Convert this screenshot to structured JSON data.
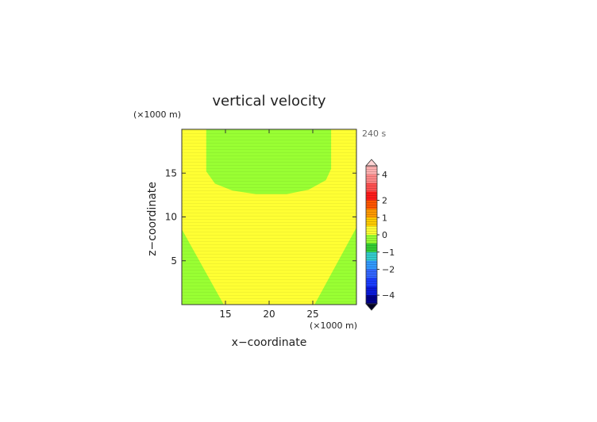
{
  "chart_data": {
    "type": "heatmap",
    "title": "vertical velocity",
    "xlabel": "x−coordinate",
    "ylabel": "z−coordinate",
    "x_unit": "(×1000 m)",
    "y_unit": "(×1000 m)",
    "time_label": "240 s",
    "xlim": [
      10,
      30
    ],
    "ylim": [
      0,
      20
    ],
    "x_ticks": [
      15,
      20,
      25
    ],
    "y_ticks": [
      5,
      10,
      15
    ],
    "x_tick_labels": [
      "15",
      "20",
      "25"
    ],
    "y_tick_labels": [
      "5",
      "10",
      "15"
    ],
    "field": {
      "background_level": "0 to 0.5",
      "background_color": "#ffff33",
      "regions": [
        {
          "name": "upper-green-region",
          "level": "-0.5 to 0",
          "color": "#99ff33",
          "polygon": [
            [
              12.8,
              20
            ],
            [
              27.1,
              20
            ],
            [
              27.1,
              15.5
            ],
            [
              26.5,
              14.2
            ],
            [
              24.5,
              13.1
            ],
            [
              22,
              12.6
            ],
            [
              18.5,
              12.6
            ],
            [
              15.8,
              13.0
            ],
            [
              13.8,
              13.8
            ],
            [
              12.8,
              15.2
            ]
          ]
        },
        {
          "name": "left-green-region",
          "level": "-0.5 to 0",
          "color": "#99ff33",
          "polygon": [
            [
              10,
              8.6
            ],
            [
              10,
              0
            ],
            [
              14.8,
              0
            ]
          ]
        },
        {
          "name": "right-green-region",
          "level": "-0.5 to 0",
          "color": "#99ff33",
          "polygon": [
            [
              30,
              8.8
            ],
            [
              30,
              0
            ],
            [
              25.2,
              0
            ]
          ]
        }
      ]
    },
    "colorbar": {
      "tick_values": [
        4,
        2,
        1,
        0,
        -1,
        -2,
        -4
      ],
      "tick_labels": [
        "4",
        "2",
        "1",
        "0",
        "−1",
        "−2",
        "−4"
      ],
      "bands": [
        {
          "lo": 4,
          "hi": 5,
          "color": "#ffb0b0"
        },
        {
          "lo": 3,
          "hi": 4,
          "color": "#ff8888"
        },
        {
          "lo": 2.5,
          "hi": 3,
          "color": "#ff5050"
        },
        {
          "lo": 2,
          "hi": 2.5,
          "color": "#ff1a1a"
        },
        {
          "lo": 1.5,
          "hi": 2,
          "color": "#ff5500"
        },
        {
          "lo": 1,
          "hi": 1.5,
          "color": "#ff9900"
        },
        {
          "lo": 0.5,
          "hi": 1,
          "color": "#ffcc00"
        },
        {
          "lo": 0,
          "hi": 0.5,
          "color": "#ffff33"
        },
        {
          "lo": -0.5,
          "hi": 0,
          "color": "#99ff33"
        },
        {
          "lo": -1,
          "hi": -0.5,
          "color": "#33cc33"
        },
        {
          "lo": -1.5,
          "hi": -1,
          "color": "#33cccc"
        },
        {
          "lo": -2,
          "hi": -1.5,
          "color": "#3399ff"
        },
        {
          "lo": -2.5,
          "hi": -2,
          "color": "#3366ff"
        },
        {
          "lo": -3,
          "hi": -2.5,
          "color": "#1a3cff"
        },
        {
          "lo": -4,
          "hi": -3,
          "color": "#0a1adb"
        },
        {
          "lo": -5,
          "hi": -4,
          "color": "#00008b"
        }
      ],
      "top_cap_color": "#ffd4d4",
      "bottom_cap_color": "#000022"
    }
  }
}
